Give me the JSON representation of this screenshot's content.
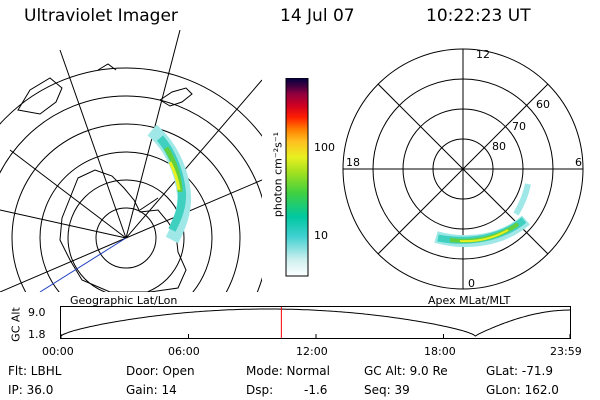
{
  "header": {
    "title": "Ultraviolet Imager",
    "date": "14 Jul 07",
    "time": "10:22:23 UT"
  },
  "left_map": {
    "label": "Geographic Lat/Lon"
  },
  "colorbar": {
    "unit_label": "photon cm⁻²s⁻¹",
    "ticks": [
      "100",
      "10"
    ],
    "colors": [
      "#ffffff",
      "#d0f0f0",
      "#40d0d0",
      "#00c8a0",
      "#40d040",
      "#a0e020",
      "#e8f020",
      "#ffc020",
      "#ff8000",
      "#ff2000",
      "#d00020",
      "#900040",
      "#400040",
      "#000040"
    ]
  },
  "right_map": {
    "label": "Apex MLat/MLT",
    "lat_labels": [
      "80",
      "70",
      "60"
    ],
    "mlt_labels": {
      "top": "12",
      "left": "18",
      "right": "6",
      "bottom": "0"
    }
  },
  "altitude_plot": {
    "ylabel": "GC Alt",
    "yticks": [
      "9.0",
      "1.8"
    ],
    "xticks": [
      "00:00",
      "06:00",
      "12:00",
      "18:00",
      "23:59"
    ],
    "current_hour": 10.37,
    "marker_color": "#ff0000"
  },
  "info": {
    "filter": "Flt: LBHL",
    "door": "Door: Open",
    "mode": "Mode: Normal",
    "gc_alt": "GC Alt: 9.0 Re",
    "glat": "GLat: -71.9",
    "ip": "IP: 36.0",
    "gain": "Gain: 14",
    "dsp_label": "Dsp:",
    "dsp_value": "-1.6",
    "seq": "Seq: 39",
    "glon": "GLon: 162.0"
  }
}
